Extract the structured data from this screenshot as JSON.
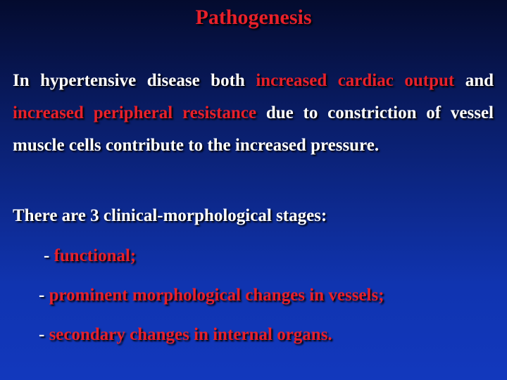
{
  "slide": {
    "title": "Pathogenesis",
    "paragraphs": [
      {
        "segments": [
          {
            "text": "In hypertensive disease both ",
            "highlight": false
          },
          {
            "text": "increased cardiac output",
            "highlight": true
          },
          {
            "text": " and ",
            "highlight": false
          },
          {
            "text": "increased peripheral resistance",
            "highlight": true
          },
          {
            "text": " due to constriction of vessel muscle cells contribute to the increased pressure.",
            "highlight": false
          }
        ]
      },
      {
        "segments": [
          {
            "text": "There are 3 clinical-morphological stages:",
            "highlight": false
          }
        ]
      }
    ],
    "bullets": [
      {
        "segments": [
          {
            "text": "- ",
            "highlight": false
          },
          {
            "text": "functional;",
            "highlight": true
          }
        ]
      },
      {
        "segments": [
          {
            "text": "- ",
            "highlight": false
          },
          {
            "text": "prominent morphological changes in vessels;",
            "highlight": true
          }
        ]
      },
      {
        "segments": [
          {
            "text": "- ",
            "highlight": false
          },
          {
            "text": "secondary changes in internal organs.",
            "highlight": true
          }
        ]
      }
    ]
  }
}
